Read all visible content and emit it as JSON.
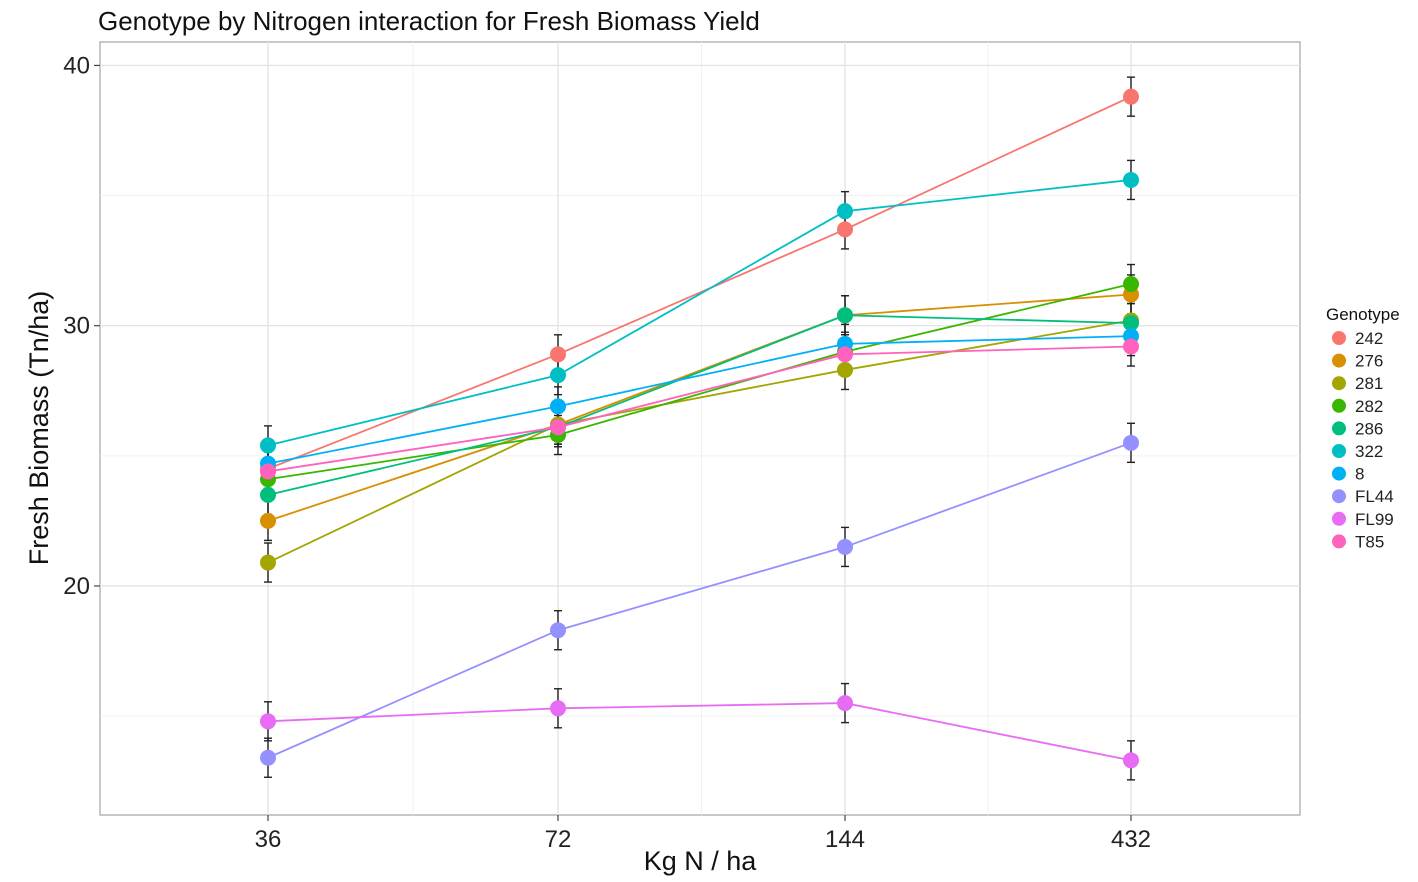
{
  "chart_data": {
    "type": "line",
    "title": "Genotype by Nitrogen interaction for Fresh Biomass Yield",
    "xlabel": "Kg N / ha",
    "ylabel": "Fresh Biomass (Tn/ha)",
    "categories": [
      "36",
      "72",
      "144",
      "432"
    ],
    "ylim": [
      11.2,
      40.9
    ],
    "y_ticks": [
      20,
      30,
      40
    ],
    "grid": true,
    "error_bar_halfwidth": 0.75,
    "legend": {
      "title": "Genotype",
      "position": "right"
    },
    "series": [
      {
        "name": "242",
        "color": "#F8766D",
        "values": [
          24.5,
          28.9,
          33.7,
          38.8
        ]
      },
      {
        "name": "276",
        "color": "#D89000",
        "values": [
          22.5,
          26.2,
          30.4,
          31.2
        ]
      },
      {
        "name": "281",
        "color": "#A3A500",
        "values": [
          20.9,
          26.2,
          28.3,
          30.2
        ]
      },
      {
        "name": "282",
        "color": "#39B600",
        "values": [
          24.1,
          25.8,
          29.0,
          31.6
        ]
      },
      {
        "name": "286",
        "color": "#00BF7D",
        "values": [
          23.5,
          26.1,
          30.4,
          30.1
        ]
      },
      {
        "name": "322",
        "color": "#00BFC4",
        "values": [
          25.4,
          28.1,
          34.4,
          35.6
        ]
      },
      {
        "name": "8",
        "color": "#00B0F6",
        "values": [
          24.7,
          26.9,
          29.3,
          29.6
        ]
      },
      {
        "name": "FL44",
        "color": "#9590FF",
        "values": [
          13.4,
          18.3,
          21.5,
          25.5
        ]
      },
      {
        "name": "FL99",
        "color": "#E76BF3",
        "values": [
          14.8,
          15.3,
          15.5,
          13.3
        ]
      },
      {
        "name": "T85",
        "color": "#FF62BC",
        "values": [
          24.4,
          26.1,
          28.9,
          29.2
        ]
      }
    ]
  }
}
